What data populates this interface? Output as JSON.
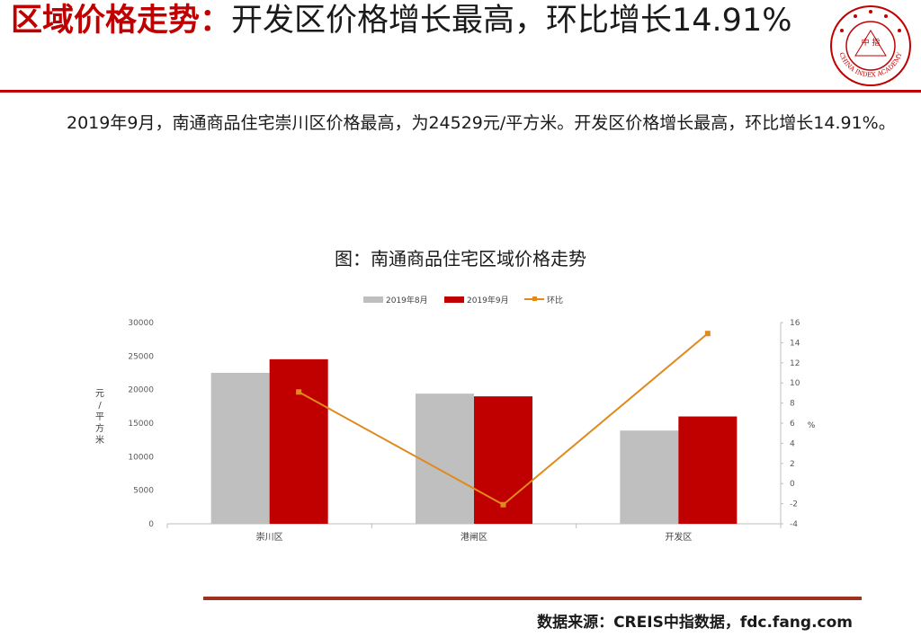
{
  "header": {
    "title_highlight": "区域价格走势：",
    "title_rest": "开发区价格增长最高，环比增长14.91%",
    "logo": {
      "icon": "china-index-academy-seal",
      "inner_text": "中 指",
      "ring_text": "CHINA INDEX ACADEMY",
      "color": "#c00000"
    }
  },
  "paragraph": "2019年9月，南通商品住宅崇川区价格最高，为24529元/平方米。开发区价格增长最高，环比增长14.91%。",
  "chart_data": {
    "type": "bar",
    "title": "图：南通商品住宅区域价格走势",
    "categories": [
      "崇川区",
      "港闸区",
      "开发区"
    ],
    "series": [
      {
        "name": "2019年8月",
        "type": "bar",
        "axis": "left",
        "color": "#bfbfbf",
        "values": [
          22500,
          19400,
          13900
        ]
      },
      {
        "name": "2019年9月",
        "type": "bar",
        "axis": "left",
        "color": "#c00000",
        "values": [
          24529,
          19000,
          16000
        ]
      },
      {
        "name": "环比",
        "type": "line",
        "axis": "right",
        "color": "#e08a1e",
        "values": [
          9.1,
          -2.1,
          14.91
        ]
      }
    ],
    "ylabel": "元/平方米",
    "y2label": "%",
    "ylim": [
      0,
      30000
    ],
    "yticks": [
      "30000",
      "25000",
      "20000",
      "15000",
      "10000",
      "5000",
      "0"
    ],
    "y2lim": [
      -4,
      16
    ],
    "y2ticks": [
      "16",
      "14",
      "12",
      "10",
      "8",
      "6",
      "4",
      "2",
      "0",
      "-2",
      "-4"
    ],
    "legend_position": "top",
    "grid": false
  },
  "footer": {
    "source": "数据来源：CREIS中指数据，fdc.fang.com"
  }
}
